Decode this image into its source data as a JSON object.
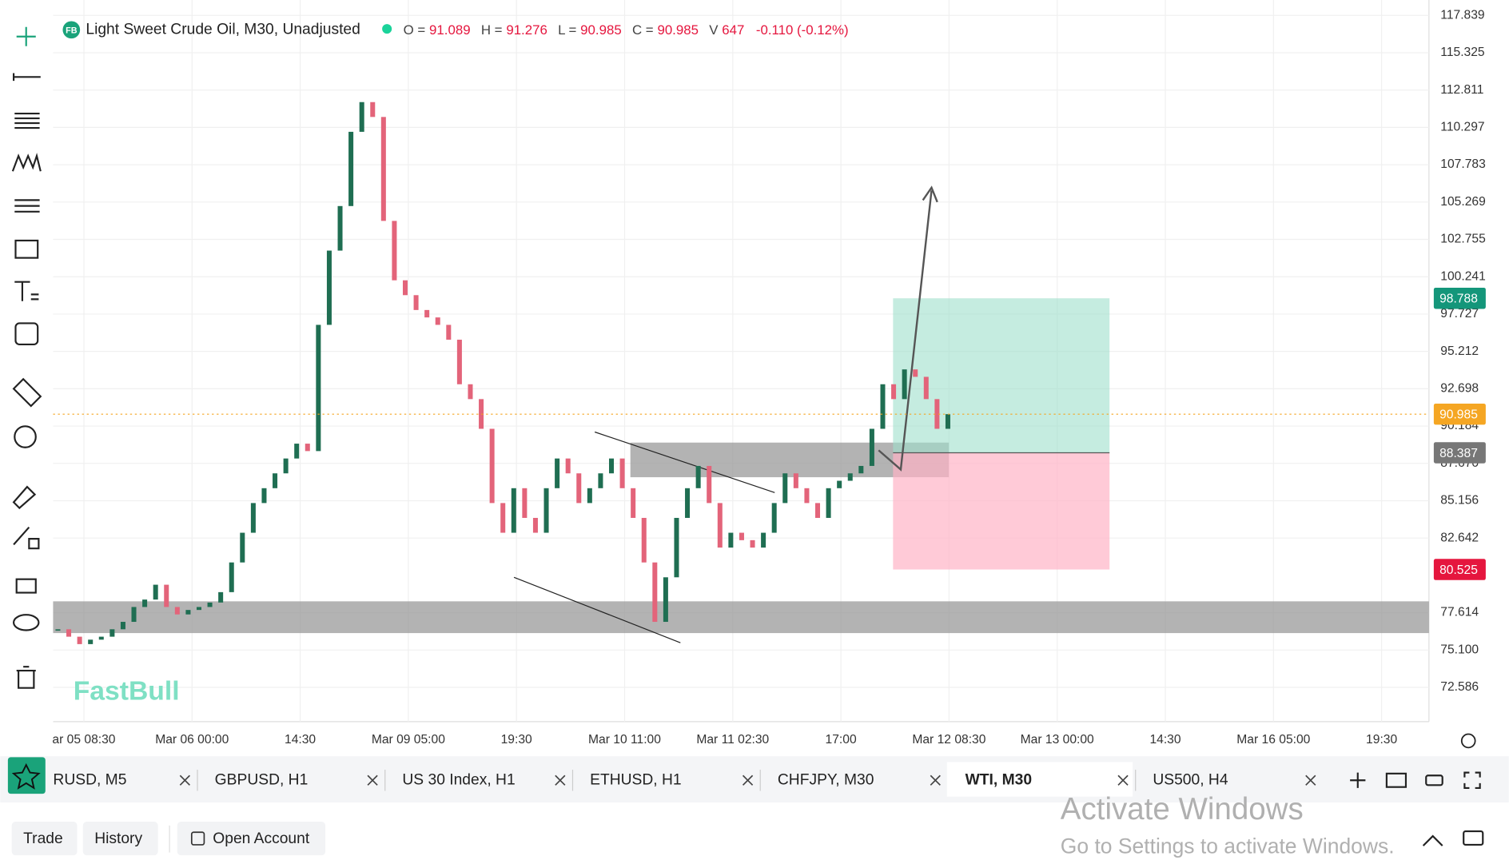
{
  "header": {
    "logo": "FB",
    "symbol": "Light Sweet Crude Oil, M30, Unadjusted",
    "ohlc": [
      {
        "label": "O =",
        "value": 91.089
      },
      {
        "label": "H =",
        "value": 91.276
      },
      {
        "label": "L =",
        "value": 90.985
      },
      {
        "label": "C =",
        "value": 90.985
      }
    ],
    "volume": {
      "label": "V",
      "value": 647
    },
    "change": "-0.110 (-0.12%)"
  },
  "chart_data": {
    "type": "candlestick",
    "ylim": [
      70.282,
      118.876
    ],
    "yticks": [
      117.839,
      115.325,
      112.811,
      110.297,
      107.783,
      105.269,
      102.755,
      100.241,
      97.727,
      95.212,
      92.698,
      90.184,
      {
        "value": 87.67,
        "label": "87.670"
      },
      85.156,
      82.642,
      77.614,
      {
        "value": 75.1,
        "label": "75.100"
      },
      72.586
    ],
    "categories": [
      "ar 05 08:30",
      "Mar 06 00:00",
      "14:30",
      "Mar 09 05:00",
      "19:30",
      "Mar 10 11:00",
      "Mar 11 02:30",
      "17:00",
      "Mar 12 08:30",
      "Mar 13 00:00",
      "14:30",
      "Mar 16 05:00",
      "19:30"
    ],
    "closes": [
      76.5,
      76,
      75.5,
      75.8,
      76,
      76.5,
      77,
      78,
      78.5,
      79.5,
      78,
      77.5,
      77.8,
      78,
      78.3,
      79,
      81,
      83,
      85,
      86,
      87,
      88,
      89,
      88.5,
      97,
      102,
      105,
      110,
      112,
      111,
      104,
      100,
      99,
      98,
      97.5,
      97,
      96,
      93,
      92,
      90,
      85,
      83,
      86,
      84,
      83,
      86,
      88,
      87,
      85,
      86,
      87,
      88,
      86,
      84,
      81,
      77,
      80,
      84,
      86,
      87.5,
      85,
      82,
      83,
      82.5,
      82,
      83,
      85,
      87,
      86,
      85,
      84,
      86,
      86.5,
      87,
      87.5,
      90,
      93,
      92,
      94,
      93.5,
      92,
      90,
      90.985
    ],
    "current_price": 90.985,
    "position": {
      "target": 98.788,
      "entry": 88.387,
      "stop": 80.525
    },
    "colors": {
      "up": "#1f6e52",
      "down": "#e3647a"
    }
  },
  "watermark": "FastBull",
  "tabs": [
    "RUSD, M5",
    "GBPUSD, H1",
    "US 30 Index, H1",
    "ETHUSD, H1",
    "CHFJPY, M30",
    "WTI, M30",
    "US500, H4"
  ],
  "active_tab": 5,
  "bottom": {
    "buttons": [
      "Trade",
      "History",
      "Open Account"
    ]
  },
  "windows_notice": {
    "title": "Activate Windows",
    "subtitle": "Go to Settings to activate Windows."
  }
}
